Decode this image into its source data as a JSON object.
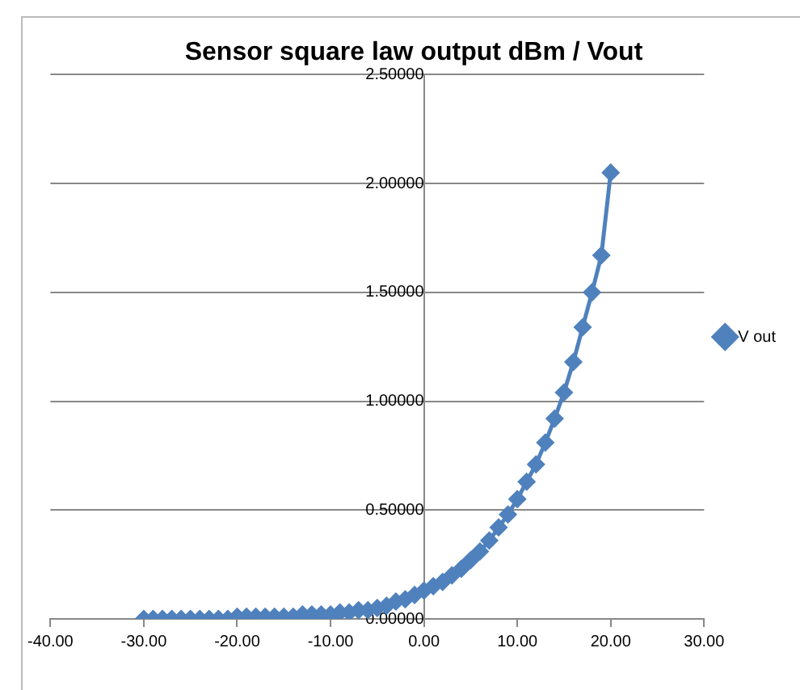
{
  "chart_data": {
    "type": "line",
    "title": "Sensor square law output dBm / Vout",
    "x": [
      -30,
      -29,
      -28,
      -27,
      -26,
      -25,
      -24,
      -23,
      -22,
      -21,
      -20,
      -19,
      -18,
      -17,
      -16,
      -15,
      -14,
      -13,
      -12,
      -11,
      -10,
      -9,
      -8,
      -7,
      -6,
      -5,
      -4,
      -3,
      -2,
      -1,
      0,
      1,
      2,
      3,
      4,
      5,
      6,
      7,
      8,
      9,
      10,
      11,
      12,
      13,
      14,
      15,
      16,
      17,
      18,
      19,
      20
    ],
    "series": [
      {
        "name": "V out",
        "color": "#4f81bd",
        "values": [
          0.0,
          0.0,
          0.0,
          0.0,
          0.0,
          0.0,
          0.0,
          0.0,
          0.0,
          0.0,
          0.01,
          0.01,
          0.01,
          0.01,
          0.01,
          0.01,
          0.01,
          0.02,
          0.02,
          0.02,
          0.02,
          0.03,
          0.03,
          0.04,
          0.04,
          0.05,
          0.06,
          0.08,
          0.09,
          0.11,
          0.13,
          0.15,
          0.17,
          0.2,
          0.23,
          0.27,
          0.31,
          0.36,
          0.42,
          0.48,
          0.55,
          0.63,
          0.71,
          0.81,
          0.92,
          1.04,
          1.18,
          1.34,
          1.5,
          1.67,
          2.05
        ]
      }
    ],
    "xlim": [
      -40,
      30
    ],
    "xticks": [
      {
        "value": -40,
        "label": "-40.00"
      },
      {
        "value": -30,
        "label": "-30.00"
      },
      {
        "value": -20,
        "label": "-20.00"
      },
      {
        "value": -10,
        "label": "-10.00"
      },
      {
        "value": 0,
        "label": "0.00"
      },
      {
        "value": 10,
        "label": "10.00"
      },
      {
        "value": 20,
        "label": "20.00"
      },
      {
        "value": 30,
        "label": "30.00"
      }
    ],
    "ylim": [
      0,
      2.5
    ],
    "yticks": [
      {
        "value": 0,
        "label": "0.00000"
      },
      {
        "value": 0.5,
        "label": "0.50000"
      },
      {
        "value": 1,
        "label": "1.00000"
      },
      {
        "value": 1.5,
        "label": "1.50000"
      },
      {
        "value": 2,
        "label": "2.00000"
      },
      {
        "value": 2.5,
        "label": "2.50000"
      }
    ],
    "grid": "y",
    "legend": "right",
    "marker": "diamond",
    "line_style": "solid"
  }
}
